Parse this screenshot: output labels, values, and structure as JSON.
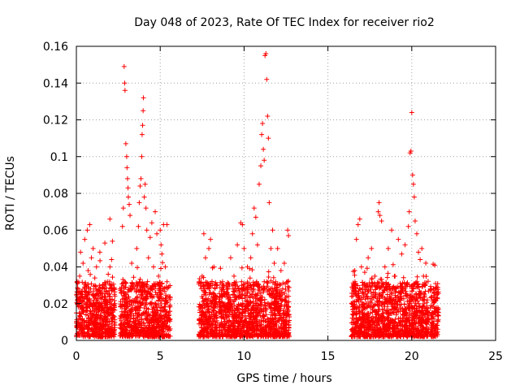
{
  "chart_data": {
    "type": "scatter",
    "title": "Day 048 of 2023, Rate Of TEC Index for receiver rio2",
    "xlabel": "GPS time / hours",
    "ylabel": "ROTI / TECUs",
    "xlim": [
      0,
      25
    ],
    "ylim": [
      0,
      0.16
    ],
    "x_ticks": [
      0,
      5,
      10,
      15,
      20,
      25
    ],
    "y_ticks": [
      0,
      0.02,
      0.04,
      0.06,
      0.08,
      0.1,
      0.12,
      0.14,
      0.16
    ],
    "x_tick_labels": [
      "0",
      "5",
      "10",
      "15",
      "20",
      "25"
    ],
    "y_tick_labels": [
      "0",
      "0.02",
      "0.04",
      "0.06",
      "0.08",
      "0.1",
      "0.12",
      "0.14",
      "0.16"
    ],
    "grid": true,
    "marker": "+",
    "color": "#ff0000",
    "series": [
      {
        "points": [
          [
            0.0,
            0.015
          ],
          [
            0.05,
            0.022
          ],
          [
            0.1,
            0.028
          ],
          [
            0.15,
            0.012
          ],
          [
            0.2,
            0.035
          ],
          [
            0.25,
            0.048
          ],
          [
            0.3,
            0.018
          ],
          [
            0.35,
            0.025
          ],
          [
            0.4,
            0.042
          ],
          [
            0.45,
            0.008
          ],
          [
            0.5,
            0.055
          ],
          [
            0.55,
            0.03
          ],
          [
            0.6,
            0.02
          ],
          [
            0.65,
            0.06
          ],
          [
            0.7,
            0.038
          ],
          [
            0.75,
            0.012
          ],
          [
            0.8,
            0.063
          ],
          [
            0.85,
            0.028
          ],
          [
            0.9,
            0.045
          ],
          [
            0.95,
            0.016
          ],
          [
            1.0,
            0.05
          ],
          [
            1.05,
            0.024
          ],
          [
            1.1,
            0.034
          ],
          [
            1.15,
            0.01
          ],
          [
            1.2,
            0.04
          ],
          [
            1.3,
            0.02
          ],
          [
            1.4,
            0.048
          ],
          [
            1.5,
            0.012
          ],
          [
            1.6,
            0.03
          ],
          [
            1.7,
            0.053
          ],
          [
            1.8,
            0.018
          ],
          [
            1.9,
            0.036
          ],
          [
            2.0,
            0.066
          ],
          [
            2.05,
            0.028
          ],
          [
            2.1,
            0.044
          ],
          [
            2.15,
            0.054
          ],
          [
            2.2,
            0.004
          ],
          [
            2.3,
            0.02
          ],
          [
            2.6,
            0.012
          ],
          [
            2.7,
            0.028
          ],
          [
            2.75,
            0.062
          ],
          [
            2.8,
            0.072
          ],
          [
            2.85,
            0.149
          ],
          [
            2.88,
            0.14
          ],
          [
            2.9,
            0.136
          ],
          [
            2.95,
            0.107
          ],
          [
            3.0,
            0.1
          ],
          [
            3.02,
            0.094
          ],
          [
            3.05,
            0.088
          ],
          [
            3.08,
            0.083
          ],
          [
            3.1,
            0.078
          ],
          [
            3.15,
            0.074
          ],
          [
            3.2,
            0.068
          ],
          [
            3.3,
            0.042
          ],
          [
            3.4,
            0.03
          ],
          [
            3.5,
            0.018
          ],
          [
            3.6,
            0.05
          ],
          [
            3.7,
            0.062
          ],
          [
            3.75,
            0.075
          ],
          [
            3.8,
            0.084
          ],
          [
            3.85,
            0.088
          ],
          [
            3.9,
            0.1
          ],
          [
            3.92,
            0.112
          ],
          [
            3.95,
            0.117
          ],
          [
            3.98,
            0.125
          ],
          [
            4.0,
            0.132
          ],
          [
            4.05,
            0.078
          ],
          [
            4.1,
            0.085
          ],
          [
            4.15,
            0.072
          ],
          [
            4.2,
            0.06
          ],
          [
            4.3,
            0.045
          ],
          [
            4.4,
            0.056
          ],
          [
            4.5,
            0.064
          ],
          [
            4.6,
            0.04
          ],
          [
            4.7,
            0.07
          ],
          [
            4.8,
            0.058
          ],
          [
            4.9,
            0.035
          ],
          [
            5.0,
            0.06
          ],
          [
            5.05,
            0.052
          ],
          [
            5.1,
            0.047
          ],
          [
            5.2,
            0.063
          ],
          [
            5.3,
            0.04
          ],
          [
            5.4,
            0.063
          ],
          [
            5.5,
            0.012
          ],
          [
            7.4,
            0.01
          ],
          [
            7.5,
            0.035
          ],
          [
            7.6,
            0.058
          ],
          [
            7.7,
            0.045
          ],
          [
            7.8,
            0.02
          ],
          [
            7.9,
            0.05
          ],
          [
            8.0,
            0.055
          ],
          [
            8.1,
            0.03
          ],
          [
            8.2,
            0.04
          ],
          [
            8.3,
            0.015
          ],
          [
            8.6,
            0.018
          ],
          [
            8.8,
            0.03
          ],
          [
            9.0,
            0.025
          ],
          [
            9.2,
            0.045
          ],
          [
            9.4,
            0.035
          ],
          [
            9.6,
            0.052
          ],
          [
            9.8,
            0.064
          ],
          [
            9.9,
            0.063
          ],
          [
            10.0,
            0.05
          ],
          [
            10.2,
            0.04
          ],
          [
            10.4,
            0.045
          ],
          [
            10.5,
            0.058
          ],
          [
            10.6,
            0.072
          ],
          [
            10.7,
            0.067
          ],
          [
            10.8,
            0.052
          ],
          [
            10.9,
            0.085
          ],
          [
            11.0,
            0.095
          ],
          [
            11.05,
            0.112
          ],
          [
            11.1,
            0.118
          ],
          [
            11.15,
            0.104
          ],
          [
            11.2,
            0.098
          ],
          [
            11.25,
            0.155
          ],
          [
            11.3,
            0.156
          ],
          [
            11.35,
            0.142
          ],
          [
            11.4,
            0.122
          ],
          [
            11.45,
            0.11
          ],
          [
            11.5,
            0.075
          ],
          [
            11.6,
            0.05
          ],
          [
            11.7,
            0.06
          ],
          [
            11.8,
            0.042
          ],
          [
            12.0,
            0.05
          ],
          [
            12.2,
            0.038
          ],
          [
            12.4,
            0.042
          ],
          [
            12.6,
            0.06
          ],
          [
            12.65,
            0.057
          ],
          [
            16.5,
            0.01
          ],
          [
            16.6,
            0.038
          ],
          [
            16.7,
            0.055
          ],
          [
            16.8,
            0.063
          ],
          [
            16.9,
            0.066
          ],
          [
            17.0,
            0.04
          ],
          [
            17.2,
            0.03
          ],
          [
            17.4,
            0.045
          ],
          [
            17.6,
            0.05
          ],
          [
            17.8,
            0.035
          ],
          [
            18.0,
            0.07
          ],
          [
            18.05,
            0.075
          ],
          [
            18.1,
            0.068
          ],
          [
            18.2,
            0.065
          ],
          [
            18.4,
            0.04
          ],
          [
            18.6,
            0.05
          ],
          [
            18.8,
            0.06
          ],
          [
            19.0,
            0.035
          ],
          [
            19.2,
            0.055
          ],
          [
            19.4,
            0.047
          ],
          [
            19.6,
            0.052
          ],
          [
            19.8,
            0.062
          ],
          [
            19.85,
            0.07
          ],
          [
            19.9,
            0.102
          ],
          [
            19.95,
            0.103
          ],
          [
            20.0,
            0.124
          ],
          [
            20.05,
            0.09
          ],
          [
            20.1,
            0.085
          ],
          [
            20.15,
            0.078
          ],
          [
            20.2,
            0.065
          ],
          [
            20.3,
            0.058
          ],
          [
            20.4,
            0.048
          ],
          [
            20.5,
            0.044
          ],
          [
            20.6,
            0.05
          ],
          [
            20.7,
            0.035
          ],
          [
            20.8,
            0.03
          ],
          [
            21.2,
            0.015
          ],
          [
            21.3,
            0.022
          ],
          [
            21.4,
            0.028
          ],
          [
            21.5,
            0.025
          ]
        ]
      }
    ]
  }
}
